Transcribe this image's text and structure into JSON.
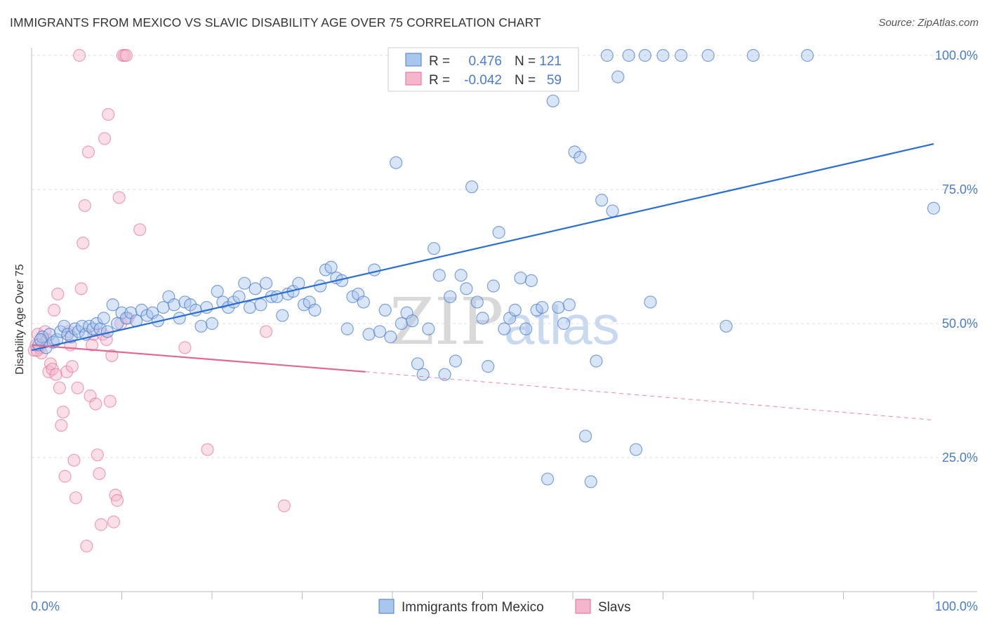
{
  "title": "IMMIGRANTS FROM MEXICO VS SLAVIC DISABILITY AGE OVER 75 CORRELATION CHART",
  "source": "Source: ZipAtlas.com",
  "watermark": {
    "zip": "ZIP",
    "atlas": "atlas"
  },
  "colors": {
    "blue": "#4a7cc9",
    "blue_fill": "#a9c6ee",
    "blue_line": "#2a6fcf",
    "pink": "#e06a94",
    "pink_fill": "#f5b6cb",
    "pink_line": "#e06a94",
    "grid": "#dddddd",
    "axis": "#bbbbbb"
  },
  "legend_top": {
    "rows": [
      {
        "r_label": "R =",
        "r_value": "0.476",
        "n_label": "N =",
        "n_value": "121"
      },
      {
        "r_label": "R =",
        "r_value": "-0.042",
        "n_label": "N =",
        "n_value": "59"
      }
    ]
  },
  "chart_data": {
    "type": "scatter",
    "title": "IMMIGRANTS FROM MEXICO VS SLAVIC DISABILITY AGE OVER 75 CORRELATION CHART",
    "xlabel": "",
    "ylabel": "Disability Age Over 75",
    "xlim": [
      0,
      100
    ],
    "ylim": [
      0,
      102
    ],
    "x_tick_labels": [
      "0.0%",
      "100.0%"
    ],
    "y_ticks": [
      25,
      50,
      75,
      100
    ],
    "y_tick_labels": [
      "25.0%",
      "50.0%",
      "75.0%",
      "100.0%"
    ],
    "grid": true,
    "legend_position": "bottom-center",
    "series": [
      {
        "name": "Immigrants from Mexico",
        "trend": {
          "x": [
            0,
            100
          ],
          "y": [
            45,
            83.5
          ]
        },
        "points": [
          [
            0.8,
            46
          ],
          [
            1.2,
            47.5
          ],
          [
            1.6,
            45.5
          ],
          [
            2.0,
            48
          ],
          [
            2.4,
            46.5
          ],
          [
            2.8,
            47
          ],
          [
            3.2,
            48.5
          ],
          [
            3.6,
            49.5
          ],
          [
            4.0,
            48
          ],
          [
            4.4,
            47.5
          ],
          [
            4.8,
            49
          ],
          [
            5.2,
            48.5
          ],
          [
            5.6,
            49.5
          ],
          [
            6.0,
            48
          ],
          [
            6.4,
            49.5
          ],
          [
            6.8,
            49
          ],
          [
            7.2,
            50
          ],
          [
            7.6,
            49
          ],
          [
            8.0,
            51
          ],
          [
            8.4,
            48.5
          ],
          [
            9.0,
            53.5
          ],
          [
            9.5,
            50
          ],
          [
            10.0,
            52
          ],
          [
            10.5,
            51
          ],
          [
            11.0,
            52
          ],
          [
            11.6,
            50.5
          ],
          [
            12.2,
            52.5
          ],
          [
            12.8,
            51.5
          ],
          [
            13.4,
            52
          ],
          [
            14.0,
            50.5
          ],
          [
            14.6,
            53
          ],
          [
            15.2,
            55
          ],
          [
            15.8,
            53.5
          ],
          [
            16.4,
            51
          ],
          [
            17.0,
            54
          ],
          [
            17.6,
            53.5
          ],
          [
            18.2,
            52.5
          ],
          [
            18.8,
            49.5
          ],
          [
            19.4,
            53
          ],
          [
            20.0,
            50
          ],
          [
            20.6,
            56
          ],
          [
            21.2,
            54
          ],
          [
            21.8,
            53
          ],
          [
            22.4,
            54
          ],
          [
            23.0,
            55
          ],
          [
            23.6,
            57.5
          ],
          [
            24.2,
            53
          ],
          [
            24.8,
            56.5
          ],
          [
            25.4,
            53.5
          ],
          [
            26.0,
            57.5
          ],
          [
            26.6,
            55
          ],
          [
            27.2,
            55
          ],
          [
            27.8,
            51.5
          ],
          [
            28.4,
            55.5
          ],
          [
            29.0,
            56
          ],
          [
            29.6,
            57.5
          ],
          [
            30.2,
            53.5
          ],
          [
            30.8,
            54
          ],
          [
            31.4,
            52.5
          ],
          [
            32.0,
            57
          ],
          [
            32.6,
            60
          ],
          [
            33.2,
            60.5
          ],
          [
            33.8,
            58.5
          ],
          [
            34.4,
            58
          ],
          [
            35.0,
            49
          ],
          [
            35.6,
            55
          ],
          [
            36.2,
            55.5
          ],
          [
            36.8,
            54
          ],
          [
            37.4,
            48
          ],
          [
            38.0,
            60
          ],
          [
            38.6,
            48.5
          ],
          [
            39.2,
            52.5
          ],
          [
            39.8,
            47.5
          ],
          [
            40.4,
            80
          ],
          [
            41.0,
            50
          ],
          [
            41.6,
            52
          ],
          [
            42.2,
            50.5
          ],
          [
            42.8,
            42.5
          ],
          [
            43.4,
            40.5
          ],
          [
            44.0,
            49
          ],
          [
            44.6,
            64
          ],
          [
            45.2,
            59
          ],
          [
            45.8,
            40.5
          ],
          [
            46.4,
            55
          ],
          [
            47.0,
            43
          ],
          [
            47.6,
            59
          ],
          [
            48.2,
            56.5
          ],
          [
            48.8,
            75.5
          ],
          [
            49.4,
            54
          ],
          [
            50.0,
            51
          ],
          [
            50.6,
            42
          ],
          [
            51.2,
            57
          ],
          [
            51.8,
            67
          ],
          [
            52.4,
            49
          ],
          [
            53.0,
            51
          ],
          [
            53.6,
            52.5
          ],
          [
            54.2,
            58.5
          ],
          [
            54.8,
            49
          ],
          [
            55.4,
            58
          ],
          [
            56.0,
            52.5
          ],
          [
            56.6,
            53
          ],
          [
            57.2,
            21
          ],
          [
            57.8,
            91.5
          ],
          [
            58.4,
            53
          ],
          [
            59.0,
            50
          ],
          [
            59.6,
            53.5
          ],
          [
            60.2,
            82
          ],
          [
            60.8,
            81
          ],
          [
            61.4,
            29
          ],
          [
            62.0,
            20.5
          ],
          [
            62.6,
            43
          ],
          [
            63.2,
            73
          ],
          [
            63.8,
            100
          ],
          [
            64.4,
            71
          ],
          [
            65.0,
            96
          ],
          [
            66.2,
            100
          ],
          [
            67.0,
            26.5
          ],
          [
            68.0,
            100
          ],
          [
            68.6,
            54
          ],
          [
            70.0,
            100
          ],
          [
            72.0,
            100
          ],
          [
            75.0,
            100
          ],
          [
            77.0,
            49.5
          ],
          [
            80.0,
            100
          ],
          [
            86.0,
            100
          ],
          [
            100.0,
            71.5
          ],
          [
            1.0,
            47
          ]
        ]
      },
      {
        "name": "Slavs",
        "trend": {
          "x": [
            0,
            37
          ],
          "y": [
            46,
            41
          ]
        },
        "trend_dashed": {
          "x": [
            37,
            100
          ],
          "y": [
            41,
            32
          ]
        },
        "points": [
          [
            0.3,
            45
          ],
          [
            0.5,
            46
          ],
          [
            0.7,
            48
          ],
          [
            0.9,
            45.5
          ],
          [
            1.1,
            44.5
          ],
          [
            1.3,
            47
          ],
          [
            1.5,
            48.5
          ],
          [
            1.7,
            47
          ],
          [
            1.9,
            41
          ],
          [
            2.1,
            42.5
          ],
          [
            2.3,
            41.5
          ],
          [
            2.5,
            52.5
          ],
          [
            2.7,
            40.5
          ],
          [
            2.9,
            55.5
          ],
          [
            3.1,
            38
          ],
          [
            3.3,
            31
          ],
          [
            3.5,
            33.5
          ],
          [
            3.7,
            21.5
          ],
          [
            3.9,
            41
          ],
          [
            4.1,
            48.5
          ],
          [
            4.3,
            46
          ],
          [
            4.5,
            42
          ],
          [
            4.7,
            24.5
          ],
          [
            4.9,
            17.5
          ],
          [
            5.1,
            38
          ],
          [
            5.3,
            100
          ],
          [
            5.5,
            56.5
          ],
          [
            5.7,
            65
          ],
          [
            5.9,
            72
          ],
          [
            6.1,
            8.5
          ],
          [
            6.3,
            82
          ],
          [
            6.5,
            36.5
          ],
          [
            6.7,
            46
          ],
          [
            6.9,
            48
          ],
          [
            7.1,
            35
          ],
          [
            7.3,
            25.5
          ],
          [
            7.5,
            22
          ],
          [
            7.7,
            12.5
          ],
          [
            7.9,
            48
          ],
          [
            8.1,
            84.5
          ],
          [
            8.3,
            47
          ],
          [
            8.5,
            89
          ],
          [
            8.7,
            35.5
          ],
          [
            8.9,
            44
          ],
          [
            9.1,
            13
          ],
          [
            9.3,
            18
          ],
          [
            9.5,
            17
          ],
          [
            9.7,
            73.5
          ],
          [
            9.9,
            50
          ],
          [
            10.1,
            100
          ],
          [
            10.3,
            100
          ],
          [
            10.5,
            100
          ],
          [
            10.7,
            51
          ],
          [
            12.0,
            67.5
          ],
          [
            17.0,
            45.5
          ],
          [
            19.5,
            26.5
          ],
          [
            26.0,
            48.5
          ],
          [
            28.0,
            16
          ],
          [
            0.6,
            45
          ]
        ]
      }
    ]
  }
}
